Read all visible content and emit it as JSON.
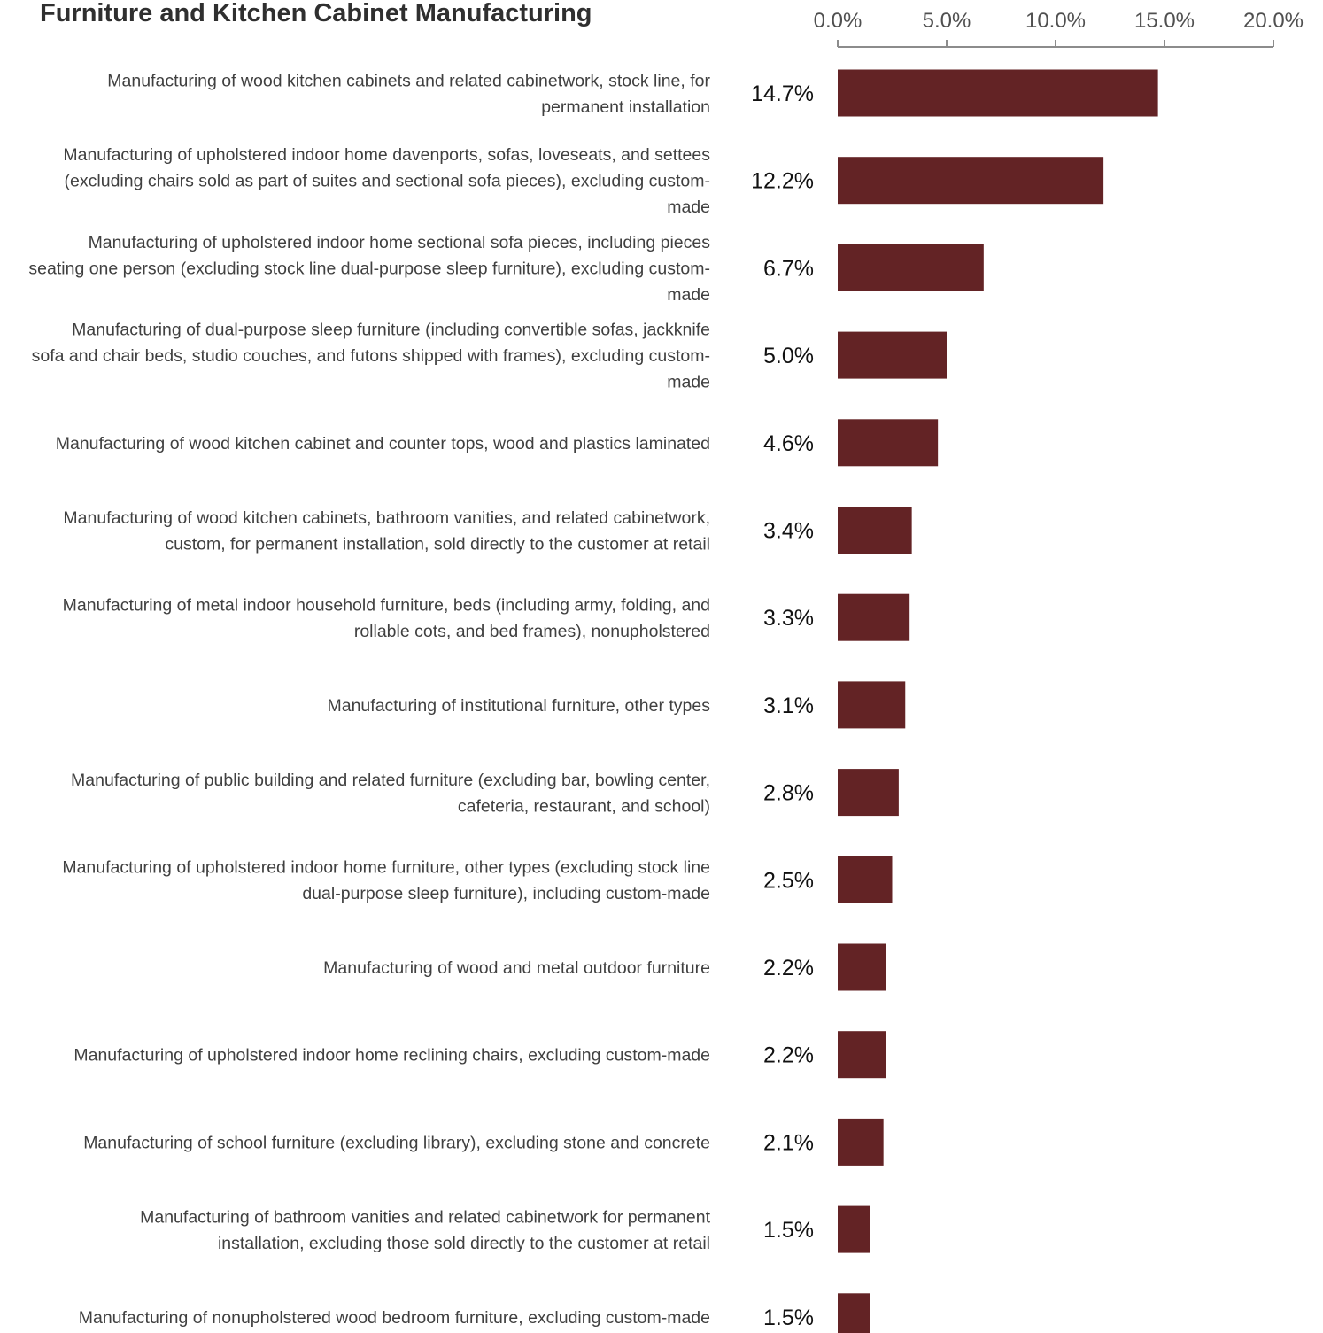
{
  "colors": {
    "bar": "#632325",
    "axis": "#8c8c8c"
  },
  "chart_data": {
    "type": "bar",
    "orientation": "horizontal",
    "title": "Furniture and Kitchen Cabinet Manufacturing",
    "xlim": [
      0,
      20
    ],
    "xticks": [
      "0.0%",
      "5.0%",
      "10.0%",
      "15.0%",
      "20.0%"
    ],
    "axis_position": "top",
    "grid": false,
    "categories": [
      [
        "Manufacturing of wood kitchen cabinets and related cabinetwork, stock line, for",
        "permanent installation"
      ],
      [
        "Manufacturing of upholstered indoor home davenports, sofas, loveseats, and settees",
        "(excluding chairs sold as part of suites and sectional sofa pieces), excluding custom-",
        "made"
      ],
      [
        "Manufacturing of upholstered indoor home sectional sofa pieces, including pieces",
        "seating one person (excluding stock line dual-purpose sleep furniture), excluding custom-",
        "made"
      ],
      [
        "Manufacturing of dual-purpose sleep furniture (including convertible sofas, jackknife",
        "sofa and chair beds, studio couches, and futons shipped with frames), excluding custom-",
        "made"
      ],
      [
        "Manufacturing of wood kitchen cabinet and counter tops, wood and plastics laminated"
      ],
      [
        "Manufacturing of wood kitchen cabinets, bathroom vanities, and related cabinetwork,",
        "custom, for permanent installation, sold directly to the customer at retail"
      ],
      [
        "Manufacturing of metal indoor household furniture, beds (including army, folding, and",
        "rollable cots, and bed frames), nonupholstered"
      ],
      [
        "Manufacturing of institutional furniture, other types"
      ],
      [
        "Manufacturing of public building and related furniture (excluding bar, bowling center,",
        "cafeteria, restaurant, and school)"
      ],
      [
        "Manufacturing of upholstered indoor home furniture, other types (excluding stock line",
        "dual-purpose sleep furniture), including custom-made"
      ],
      [
        "Manufacturing of wood and metal outdoor furniture"
      ],
      [
        "Manufacturing of upholstered indoor home reclining chairs, excluding custom-made"
      ],
      [
        "Manufacturing of school furniture (excluding library), excluding stone and concrete"
      ],
      [
        "Manufacturing of bathroom vanities and related cabinetwork for permanent",
        "installation, excluding those sold directly to the customer at retail"
      ],
      [
        "Manufacturing of nonupholstered wood bedroom furniture, excluding custom-made"
      ]
    ],
    "values": [
      14.7,
      12.2,
      6.7,
      5.0,
      4.6,
      3.4,
      3.3,
      3.1,
      2.8,
      2.5,
      2.2,
      2.2,
      2.1,
      1.5,
      1.5
    ],
    "data_labels": [
      "14.7%",
      "12.2%",
      "6.7%",
      "5.0%",
      "4.6%",
      "3.4%",
      "3.3%",
      "3.1%",
      "2.8%",
      "2.5%",
      "2.2%",
      "2.2%",
      "2.1%",
      "1.5%",
      "1.5%"
    ]
  }
}
